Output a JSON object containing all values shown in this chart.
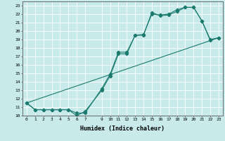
{
  "xlabel": "Humidex (Indice chaleur)",
  "ylabel": "",
  "xlim": [
    -0.5,
    23.5
  ],
  "ylim": [
    10,
    23.5
  ],
  "xticks": [
    0,
    1,
    2,
    3,
    4,
    5,
    6,
    7,
    9,
    10,
    11,
    12,
    13,
    14,
    15,
    16,
    17,
    18,
    19,
    20,
    21,
    22,
    23
  ],
  "yticks": [
    10,
    11,
    12,
    13,
    14,
    15,
    16,
    17,
    18,
    19,
    20,
    21,
    22,
    23
  ],
  "line_color": "#1a7a6e",
  "bg_color": "#c8eaea",
  "grid_color": "#ffffff",
  "line1_x": [
    0,
    1,
    2,
    3,
    4,
    5,
    6,
    7,
    9,
    10,
    11,
    12,
    13,
    14,
    15,
    16,
    17,
    18,
    19,
    20,
    21,
    22,
    23
  ],
  "line1_y": [
    11.5,
    10.7,
    10.7,
    10.7,
    10.7,
    10.7,
    10.0,
    10.5,
    13.0,
    14.7,
    17.3,
    17.3,
    19.5,
    19.5,
    22.2,
    21.8,
    21.9,
    22.3,
    22.8,
    22.8,
    21.2,
    19.0,
    19.2
  ],
  "line2_x": [
    0,
    1,
    2,
    3,
    4,
    5,
    6,
    7,
    9,
    10,
    11,
    12,
    13,
    14,
    15,
    16,
    17,
    18,
    19,
    20,
    21,
    22,
    23
  ],
  "line2_y": [
    11.5,
    10.7,
    10.7,
    10.7,
    10.7,
    10.7,
    10.3,
    10.3,
    13.2,
    14.9,
    17.5,
    17.5,
    19.5,
    19.6,
    22.0,
    21.9,
    22.0,
    22.5,
    22.8,
    22.8,
    21.2,
    18.9,
    19.2
  ],
  "line3_x": [
    0,
    23
  ],
  "line3_y": [
    11.5,
    19.2
  ]
}
